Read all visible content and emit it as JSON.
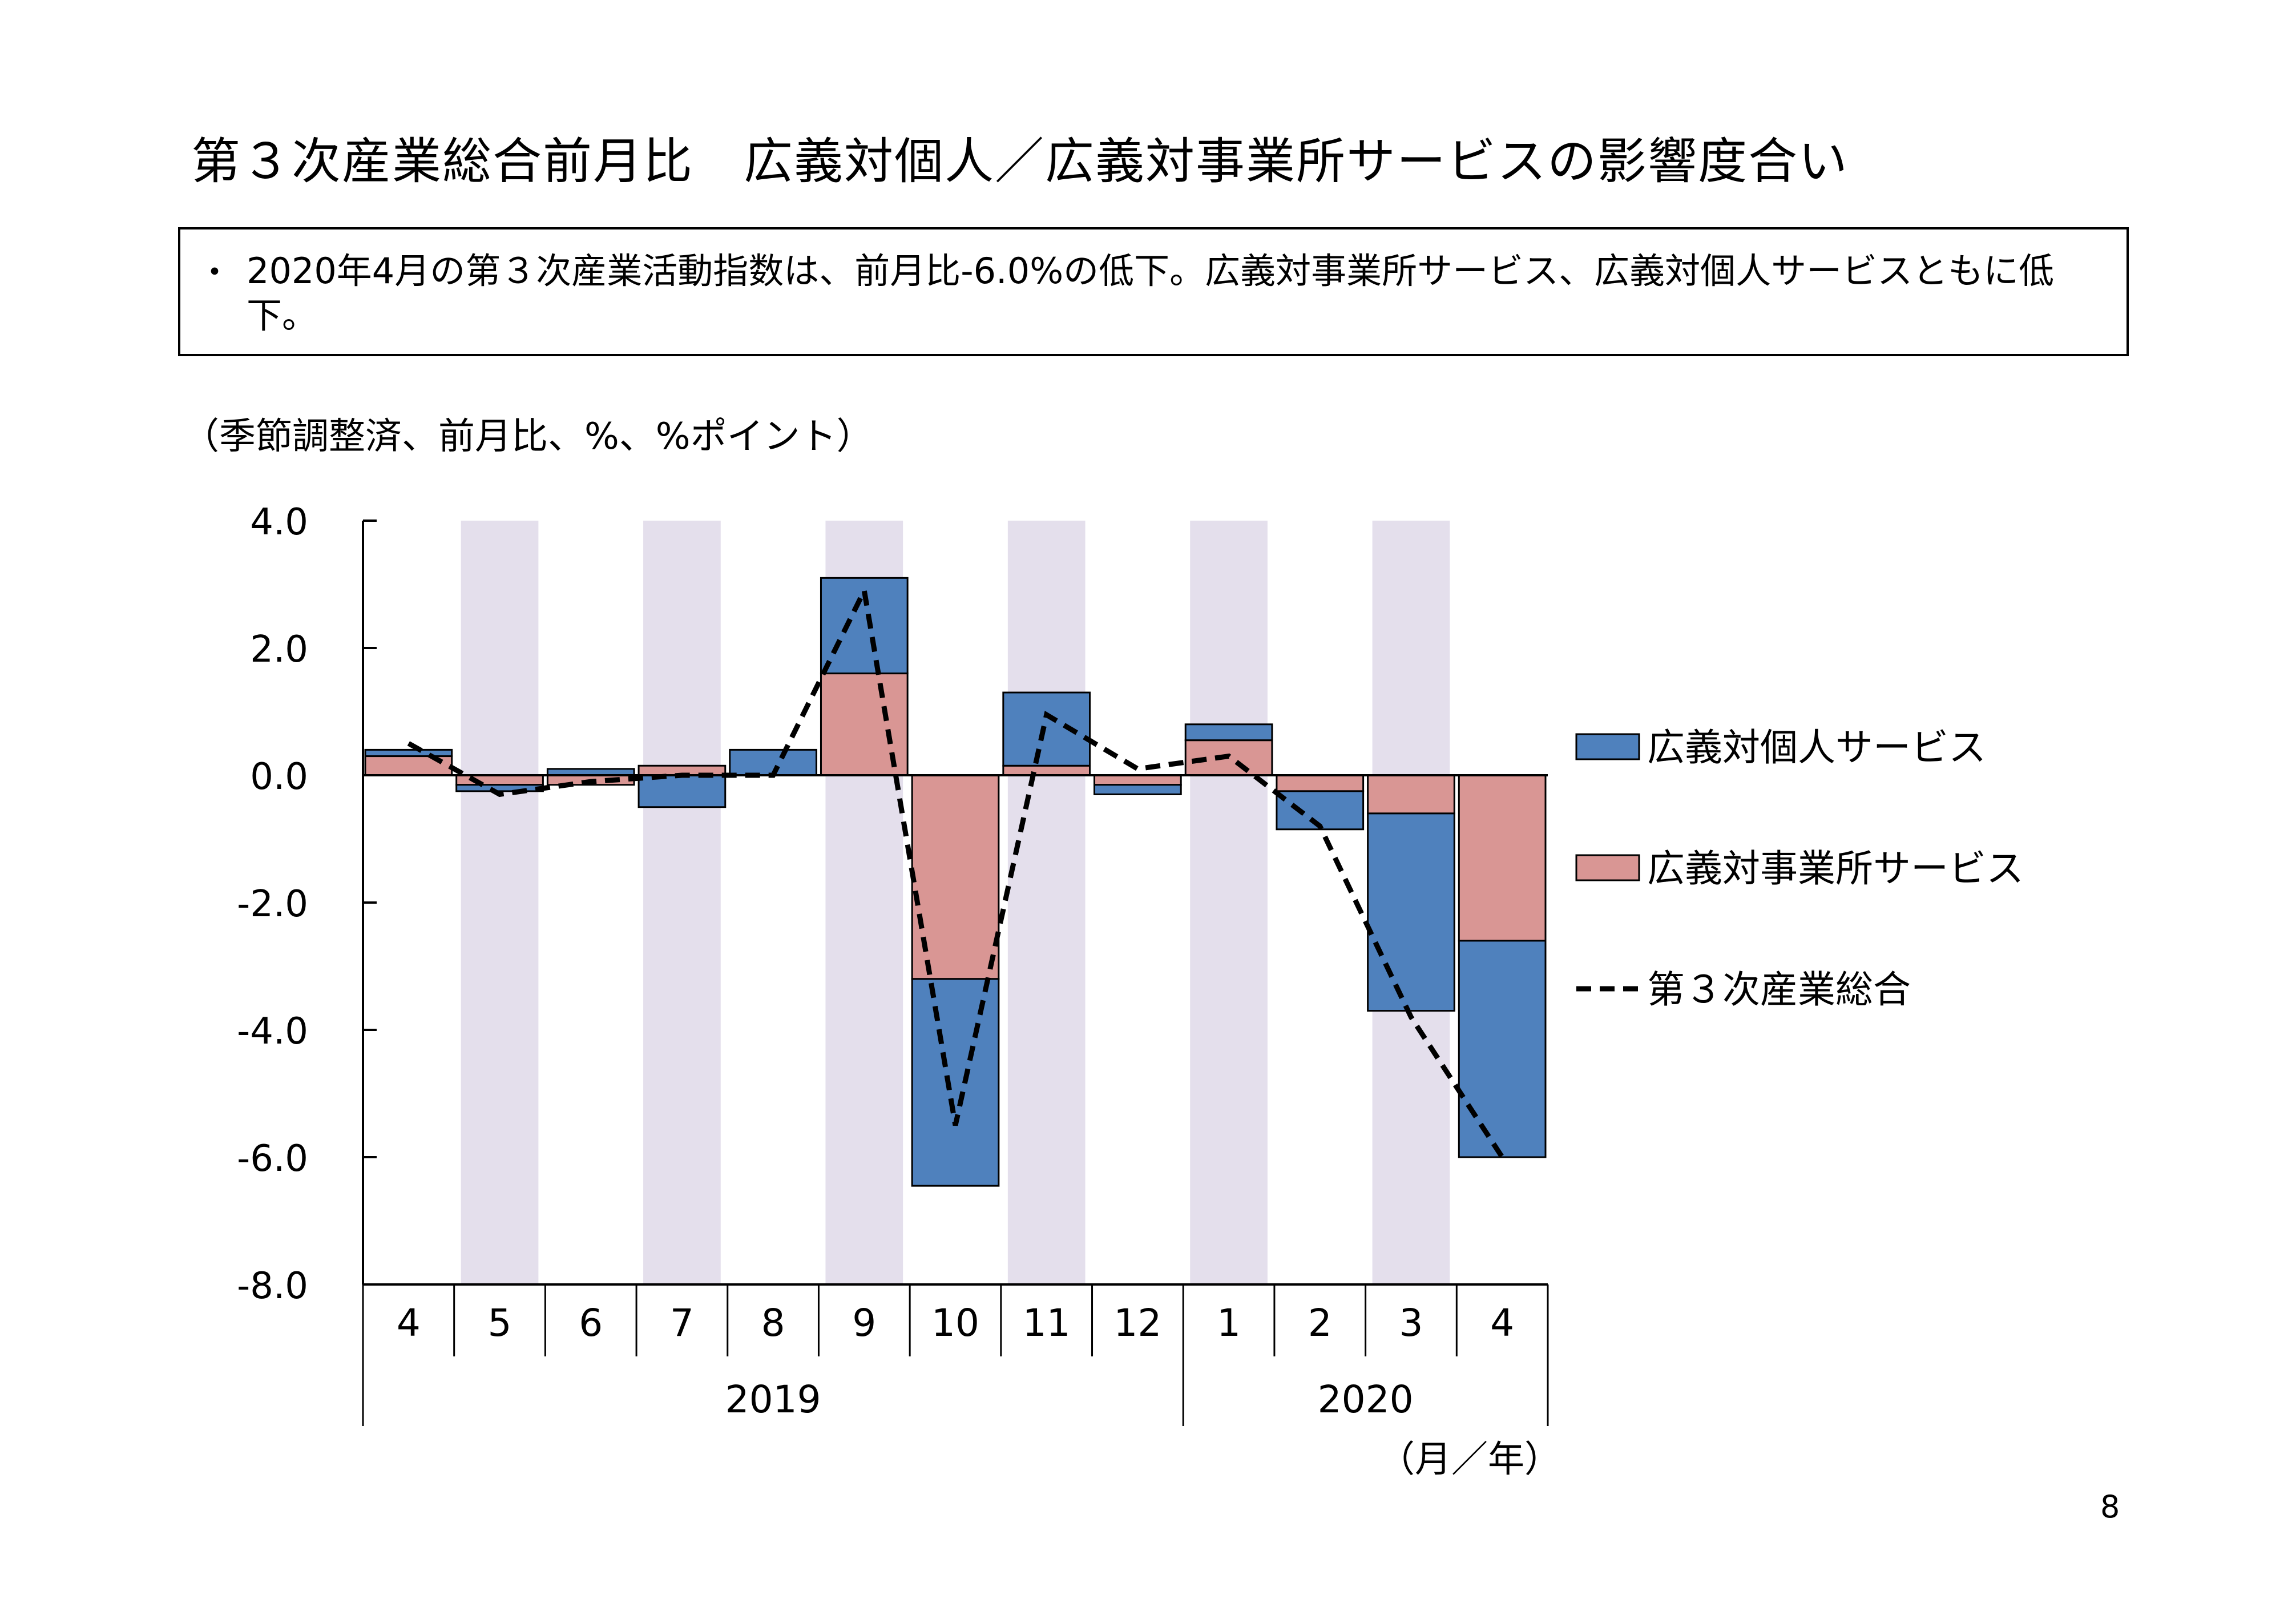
{
  "page": {
    "title": "第３次産業総合前月比　広義対個人／広義対事業所サービスの影響度合い",
    "summary_bullet": "・",
    "summary": "2020年4月の第３次産業活動指数は、前月比-6.0%の低下。広義対事業所サービス、広義対個人サービスともに低下。",
    "unit_label": "（季節調整済、前月比、%、%ポイント）",
    "axis_unit": "（月／年）",
    "page_number": "8"
  },
  "colors": {
    "personal": "#4f81bd",
    "business": "#d99694",
    "shade": "#e4dfec",
    "line": "#000000"
  },
  "chart_data": {
    "type": "bar",
    "subtype": "stacked bar with line",
    "categories": [
      "4",
      "5",
      "6",
      "7",
      "8",
      "9",
      "10",
      "11",
      "12",
      "1",
      "2",
      "3",
      "4"
    ],
    "year_groups": [
      {
        "label": "2019",
        "count": 9
      },
      {
        "label": "2020",
        "count": 4
      }
    ],
    "y_ticks": [
      "4.0",
      "2.0",
      "0.0",
      "-2.0",
      "-4.0",
      "-6.0",
      "-8.0"
    ],
    "ylim": [
      -8,
      4
    ],
    "shaded_categories": [
      1,
      3,
      5,
      7,
      9,
      11
    ],
    "series": [
      {
        "name": "広義対個人サービス",
        "type": "bar",
        "values": [
          0.1,
          -0.1,
          0.1,
          -0.5,
          0.4,
          1.5,
          -3.25,
          1.15,
          -0.15,
          0.25,
          -0.6,
          -3.1,
          -3.4
        ]
      },
      {
        "name": "広義対事業所サービス",
        "type": "bar",
        "values": [
          0.3,
          -0.15,
          -0.15,
          0.15,
          0.0,
          1.6,
          -3.2,
          0.15,
          -0.15,
          0.55,
          -0.25,
          -0.6,
          -2.6
        ]
      },
      {
        "name": "第３次産業総合",
        "type": "line",
        "values": [
          0.5,
          -0.3,
          -0.1,
          0.0,
          0.0,
          2.9,
          -5.5,
          0.95,
          0.1,
          0.3,
          -0.8,
          -3.8,
          -6.0
        ]
      }
    ],
    "legend_position": "right"
  }
}
